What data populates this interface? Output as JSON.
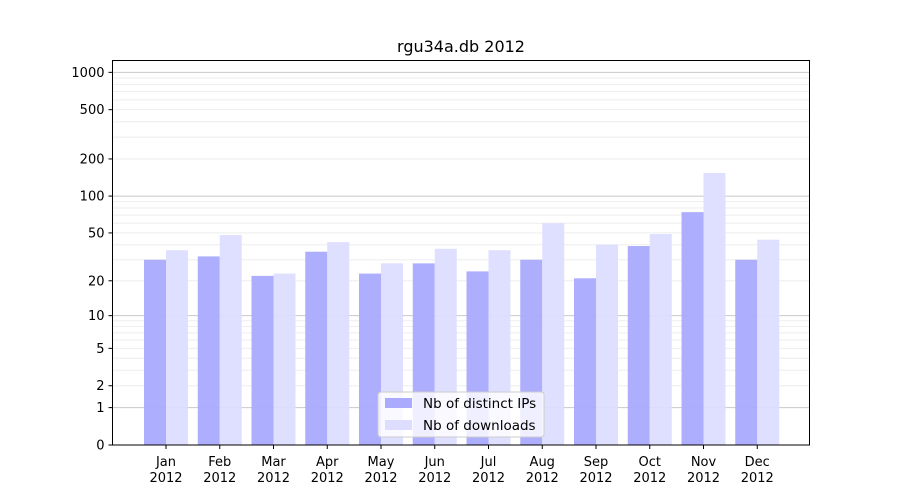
{
  "chart_data": {
    "type": "bar",
    "title": "rgu34a.db 2012",
    "xlabel": "",
    "ylabel": "",
    "yscale": "log(1+y)",
    "ylim": [
      0,
      1200
    ],
    "yticks": [
      0,
      1,
      2,
      5,
      10,
      20,
      50,
      100,
      200,
      500,
      1000
    ],
    "grid": true,
    "legend": "bottom-center",
    "categories": [
      "Jan\n2012",
      "Feb\n2012",
      "Mar\n2012",
      "Apr\n2012",
      "May\n2012",
      "Jun\n2012",
      "Jul\n2012",
      "Aug\n2012",
      "Sep\n2012",
      "Oct\n2012",
      "Nov\n2012",
      "Dec\n2012"
    ],
    "series": [
      {
        "name": "Nb of distinct IPs",
        "color": "#aaaaff",
        "values": [
          30,
          32,
          22,
          35,
          23,
          28,
          24,
          30,
          21,
          39,
          74,
          30
        ]
      },
      {
        "name": "Nb of downloads",
        "color": "#ddddff",
        "values": [
          36,
          48,
          23,
          42,
          28,
          37,
          36,
          60,
          40,
          49,
          154,
          44
        ]
      }
    ]
  }
}
